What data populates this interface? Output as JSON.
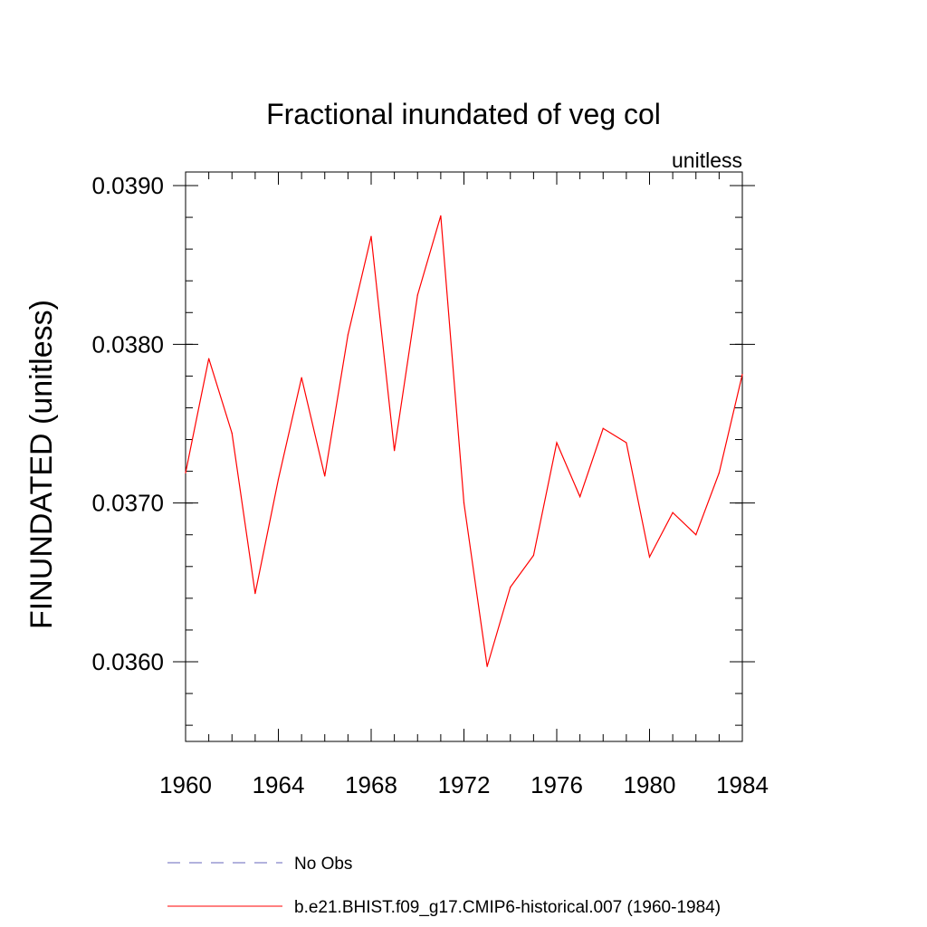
{
  "chart_data": {
    "type": "line",
    "title": "Fractional inundated of veg col",
    "units_label": "unitless",
    "xlabel": "",
    "ylabel": "FINUNDATED  (unitless)",
    "xlim": [
      1960,
      1984
    ],
    "ylim": [
      0.0355,
      0.0391
    ],
    "x_ticks": [
      1960,
      1964,
      1968,
      1972,
      1976,
      1980,
      1984
    ],
    "x_tick_labels": [
      "1960",
      "1964",
      "1968",
      "1972",
      "1976",
      "1980",
      "1984"
    ],
    "y_ticks": [
      0.036,
      0.037,
      0.038,
      0.039
    ],
    "y_tick_labels": [
      "0.0360",
      "0.0370",
      "0.0380",
      "0.0390"
    ],
    "y_minor_step": 0.0002,
    "x_minor_step": 1,
    "grid": false,
    "legend_position": "bottom-left",
    "series": [
      {
        "name": "No Obs",
        "color": "#6666bb",
        "dash": "dashed",
        "x": [],
        "values": []
      },
      {
        "name": "b.e21.BHIST.f09_g17.CMIP6-historical.007 (1960-1984)",
        "color": "#ff0000",
        "dash": "solid",
        "x": [
          1960,
          1961,
          1962,
          1963,
          1964,
          1965,
          1966,
          1967,
          1968,
          1969,
          1970,
          1971,
          1972,
          1973,
          1974,
          1975,
          1976,
          1977,
          1978,
          1979,
          1980,
          1981,
          1982,
          1983,
          1984
        ],
        "values": [
          0.03719,
          0.03791,
          0.03744,
          0.03643,
          0.03715,
          0.03779,
          0.03717,
          0.03806,
          0.03868,
          0.03733,
          0.03831,
          0.03881,
          0.037,
          0.03597,
          0.03647,
          0.03667,
          0.03738,
          0.03704,
          0.03747,
          0.03738,
          0.03666,
          0.03694,
          0.0368,
          0.03719,
          0.03781
        ]
      }
    ]
  }
}
